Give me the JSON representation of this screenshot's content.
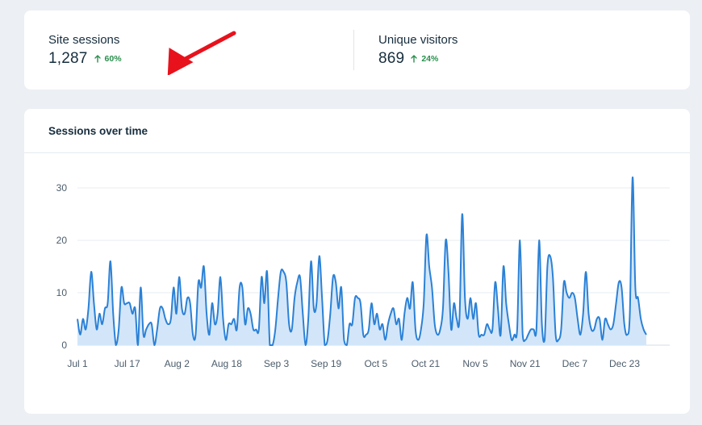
{
  "stats": [
    {
      "label": "Site sessions",
      "value": "1,287",
      "change": "60%",
      "trend": "up"
    },
    {
      "label": "Unique visitors",
      "value": "869",
      "change": "24%",
      "trend": "up"
    }
  ],
  "colors": {
    "up": "#2a8f4d",
    "line": "#2b81d6",
    "fill": "#d3e6f9",
    "arrow": "#e8121c"
  },
  "chart_title": "Sessions over time",
  "chart_data": {
    "type": "area",
    "title": "Sessions over time",
    "xlabel": "",
    "ylabel": "",
    "ylim": [
      0,
      30
    ],
    "yticks": [
      0,
      10,
      20,
      30
    ],
    "grid": true,
    "x_start": "Jul 1",
    "x_end": "Dec 31",
    "xtick_labels": [
      "Jul 1",
      "Jul 17",
      "Aug 2",
      "Aug 18",
      "Sep 3",
      "Sep 19",
      "Oct 5",
      "Oct 21",
      "Nov 5",
      "Nov 21",
      "Dec 7",
      "Dec 23"
    ],
    "series": [
      {
        "values": [
          5,
          2,
          5,
          3,
          7,
          14,
          8,
          3,
          6,
          4,
          7,
          8,
          16,
          6,
          0,
          3,
          11,
          8,
          8,
          8,
          6,
          7,
          0,
          11,
          2,
          3,
          4,
          4,
          0,
          3,
          7,
          7,
          5,
          4,
          5,
          11,
          6,
          13,
          7,
          6,
          9,
          8,
          2,
          2,
          12,
          11,
          15,
          6,
          2,
          8,
          4,
          6,
          13,
          5,
          1,
          4,
          4,
          5,
          3,
          11,
          11,
          4,
          7,
          6,
          3,
          3,
          3,
          13,
          8,
          14,
          0,
          0,
          3,
          9,
          14,
          14,
          12,
          4,
          3,
          9,
          12,
          13,
          6,
          0,
          5,
          16,
          7,
          8,
          17,
          9,
          0,
          1,
          6,
          13,
          12,
          7,
          11,
          1,
          0,
          4,
          4,
          9,
          9,
          8,
          2,
          2,
          3,
          8,
          4,
          6,
          3,
          4,
          1,
          4,
          6,
          7,
          4,
          5,
          1,
          6,
          9,
          7,
          12,
          3,
          1,
          3,
          8,
          21,
          15,
          11,
          4,
          2,
          3,
          7,
          20,
          14,
          3,
          8,
          5,
          5,
          25,
          9,
          5,
          9,
          5,
          8,
          2,
          2,
          2,
          4,
          3,
          3,
          12,
          7,
          2,
          15,
          8,
          4,
          1,
          2,
          3,
          20,
          2,
          1,
          2,
          3,
          3,
          3,
          20,
          4,
          1,
          15,
          17,
          13,
          2,
          1,
          3,
          12,
          10,
          9,
          10,
          9,
          5,
          2,
          6,
          14,
          6,
          3,
          3,
          5,
          5,
          1,
          5,
          4,
          3,
          4,
          8,
          12,
          11,
          4,
          2,
          6,
          32,
          11,
          9,
          5,
          3,
          2
        ]
      }
    ]
  }
}
